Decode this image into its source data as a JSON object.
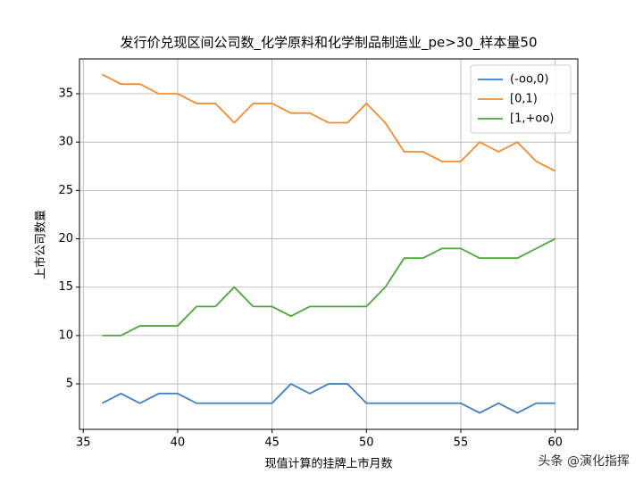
{
  "chart_data": {
    "type": "line",
    "title": "发行价兑现区间公司数_化学原料和化学制品制造业_pe>30_样本量50",
    "x_label": "现值计算的挂牌上市月数",
    "y_label": "上市公司数量",
    "x": [
      36,
      37,
      38,
      39,
      40,
      41,
      42,
      43,
      44,
      45,
      46,
      47,
      48,
      49,
      50,
      51,
      52,
      53,
      54,
      55,
      56,
      57,
      58,
      59,
      60
    ],
    "series": [
      {
        "name": "(-oo,0)",
        "color": "#3f7fbf",
        "values": [
          3,
          4,
          3,
          4,
          4,
          3,
          3,
          3,
          3,
          3,
          5,
          4,
          5,
          5,
          3,
          3,
          3,
          3,
          3,
          3,
          2,
          3,
          2,
          3,
          3
        ]
      },
      {
        "name": "[0,1)",
        "color": "#f28b30",
        "values": [
          37,
          36,
          36,
          35,
          35,
          34,
          34,
          32,
          34,
          34,
          33,
          33,
          32,
          32,
          34,
          32,
          29,
          29,
          28,
          28,
          30,
          29,
          30,
          28,
          27
        ]
      },
      {
        "name": "[1,+oo)",
        "color": "#4ea63a",
        "values": [
          10,
          10,
          11,
          11,
          11,
          13,
          13,
          15,
          13,
          13,
          12,
          13,
          13,
          13,
          13,
          15,
          18,
          18,
          19,
          19,
          18,
          18,
          18,
          19,
          20
        ]
      }
    ],
    "xlim": [
      34.8,
      61.2
    ],
    "xticks": [
      35,
      40,
      45,
      50,
      55,
      60
    ],
    "ylim": [
      0.3,
      38.6
    ],
    "yticks": [
      5,
      10,
      15,
      20,
      25,
      30,
      35
    ],
    "grid": true,
    "legend": "upper-right",
    "watermark": "头条 @演化指挥"
  }
}
